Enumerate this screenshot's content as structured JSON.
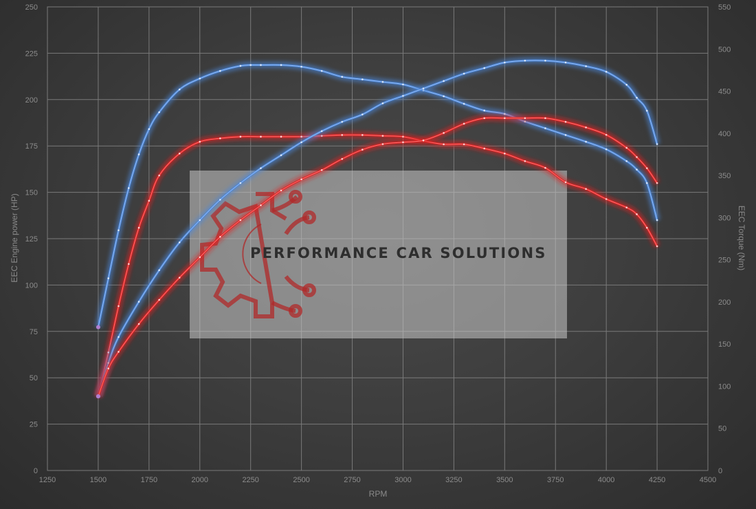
{
  "chart_data": {
    "type": "line",
    "xlabel": "RPM",
    "ylabel_left": "EEC Engine power (HP)",
    "ylabel_right": "EEC Torque (Nm)",
    "xlim": [
      1250,
      4500
    ],
    "ylim_left": [
      0,
      250
    ],
    "ylim_right": [
      0,
      550
    ],
    "x_ticks": [
      1250,
      1500,
      1750,
      2000,
      2250,
      2500,
      2750,
      3000,
      3250,
      3500,
      3750,
      4000,
      4250,
      4500
    ],
    "y_left_ticks": [
      0,
      25,
      50,
      75,
      100,
      125,
      150,
      175,
      200,
      225,
      250
    ],
    "y_right_ticks": [
      0,
      50,
      100,
      150,
      200,
      250,
      300,
      350,
      400,
      450,
      500,
      550
    ],
    "grid": true,
    "series": [
      {
        "axis": "right",
        "color": "#4a86d8",
        "x": [
          1500,
          1550,
          1600,
          1650,
          1700,
          1750,
          1800,
          1900,
          2000,
          2100,
          2200,
          2250,
          2300,
          2400,
          2500,
          2600,
          2700,
          2800,
          2900,
          3000,
          3100,
          3200,
          3300,
          3400,
          3500,
          3600,
          3700,
          3800,
          3900,
          4000,
          4100,
          4150,
          4200,
          4250
        ],
        "values": [
          170,
          228,
          285,
          335,
          375,
          405,
          425,
          452,
          465,
          474,
          480,
          481,
          481,
          481,
          479,
          474,
          467,
          464,
          461,
          458,
          451,
          444,
          435,
          427,
          423,
          414,
          406,
          398,
          390,
          381,
          367,
          357,
          341,
          297
        ]
      },
      {
        "axis": "right",
        "color": "#e02020",
        "x": [
          1500,
          1550,
          1600,
          1650,
          1700,
          1750,
          1800,
          1900,
          2000,
          2100,
          2200,
          2300,
          2400,
          2500,
          2600,
          2700,
          2800,
          2900,
          3000,
          3100,
          3200,
          3300,
          3400,
          3500,
          3600,
          3700,
          3800,
          3900,
          4000,
          4100,
          4150,
          4200,
          4250
        ],
        "values": [
          88,
          140,
          195,
          245,
          288,
          320,
          350,
          376,
          390,
          394,
          396,
          396,
          396,
          396,
          397,
          398,
          398,
          397,
          396,
          391,
          387,
          387,
          382,
          376,
          367,
          359,
          342,
          334,
          322,
          312,
          304,
          288,
          266
        ]
      },
      {
        "axis": "left",
        "color": "#4a86d8",
        "x": [
          1500,
          1550,
          1600,
          1700,
          1800,
          1900,
          2000,
          2100,
          2200,
          2300,
          2400,
          2500,
          2600,
          2700,
          2800,
          2900,
          3000,
          3100,
          3200,
          3300,
          3400,
          3500,
          3600,
          3700,
          3800,
          3900,
          4000,
          4100,
          4150,
          4200,
          4250
        ],
        "values": [
          40,
          58,
          72,
          91,
          108,
          123,
          135,
          146,
          155,
          163,
          170,
          177,
          183,
          188,
          192,
          198,
          202,
          206,
          210,
          214,
          217,
          220,
          221,
          221,
          220,
          218,
          215,
          208,
          201,
          194,
          176
        ]
      },
      {
        "axis": "left",
        "color": "#e02020",
        "x": [
          1500,
          1550,
          1600,
          1700,
          1800,
          1900,
          2000,
          2100,
          2200,
          2300,
          2400,
          2500,
          2600,
          2700,
          2800,
          2900,
          3000,
          3100,
          3200,
          3300,
          3400,
          3500,
          3600,
          3700,
          3800,
          3900,
          4000,
          4100,
          4150,
          4200,
          4250
        ],
        "values": [
          40,
          55,
          64,
          79,
          92,
          104,
          115,
          126,
          135,
          143,
          151,
          157,
          162,
          168,
          173,
          176,
          177,
          178,
          182,
          187,
          190,
          190,
          190,
          190,
          188,
          185,
          181,
          174,
          169,
          163,
          155
        ]
      }
    ]
  },
  "watermark": {
    "text": "PERFORMANCE CAR SOLUTIONS",
    "logo_color": "#b02a2a"
  }
}
